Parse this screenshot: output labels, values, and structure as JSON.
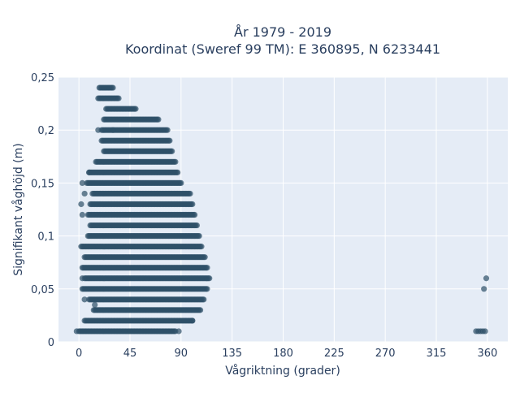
{
  "chart_data": {
    "type": "scatter",
    "title_line1": "År 1979 - 2019",
    "title_line2": "Koordinat (Sweref 99 TM): E 360895, N 6233441",
    "xlabel": "Vågriktning (grader)",
    "ylabel": "Signifikant våghöjd (m)",
    "xlim": [
      -18,
      378
    ],
    "ylim": [
      0,
      0.25
    ],
    "x_ticks": [
      0,
      45,
      90,
      135,
      180,
      225,
      270,
      315,
      360
    ],
    "x_tick_labels": [
      "0",
      "45",
      "90",
      "135",
      "180",
      "225",
      "270",
      "315",
      "360"
    ],
    "y_ticks": [
      0,
      0.05,
      0.1,
      0.15,
      0.2,
      0.25
    ],
    "y_tick_labels": [
      "0",
      "0,05",
      "0,1",
      "0,15",
      "0,2",
      "0,25"
    ],
    "grid": true,
    "marker_color": "#2e5068",
    "marker_opacity": 0.7,
    "rows": [
      {
        "y": 0.01,
        "x_min": 0,
        "x_max": 85
      },
      {
        "y": 0.02,
        "x_min": 5,
        "x_max": 100
      },
      {
        "y": 0.03,
        "x_min": 13,
        "x_max": 107
      },
      {
        "y": 0.04,
        "x_min": 9,
        "x_max": 110
      },
      {
        "y": 0.05,
        "x_min": 3,
        "x_max": 113
      },
      {
        "y": 0.06,
        "x_min": 5,
        "x_max": 115
      },
      {
        "y": 0.07,
        "x_min": 3,
        "x_max": 113
      },
      {
        "y": 0.08,
        "x_min": 5,
        "x_max": 111
      },
      {
        "y": 0.09,
        "x_min": 3,
        "x_max": 108
      },
      {
        "y": 0.1,
        "x_min": 8,
        "x_max": 106
      },
      {
        "y": 0.11,
        "x_min": 10,
        "x_max": 104
      },
      {
        "y": 0.12,
        "x_min": 8,
        "x_max": 102
      },
      {
        "y": 0.13,
        "x_min": 10,
        "x_max": 100
      },
      {
        "y": 0.14,
        "x_min": 12,
        "x_max": 98
      },
      {
        "y": 0.15,
        "x_min": 7,
        "x_max": 90
      },
      {
        "y": 0.16,
        "x_min": 9,
        "x_max": 87
      },
      {
        "y": 0.17,
        "x_min": 15,
        "x_max": 85
      },
      {
        "y": 0.18,
        "x_min": 22,
        "x_max": 82
      },
      {
        "y": 0.19,
        "x_min": 20,
        "x_max": 80
      },
      {
        "y": 0.2,
        "x_min": 20,
        "x_max": 78
      },
      {
        "y": 0.21,
        "x_min": 22,
        "x_max": 70
      },
      {
        "y": 0.22,
        "x_min": 24,
        "x_max": 50
      },
      {
        "y": 0.23,
        "x_min": 17,
        "x_max": 35
      },
      {
        "y": 0.24,
        "x_min": 18,
        "x_max": 30
      }
    ],
    "scattered_points": [
      {
        "x": -2,
        "y": 0.01
      },
      {
        "x": 88,
        "y": 0.01
      },
      {
        "x": 100,
        "y": 0.02
      },
      {
        "x": 14,
        "y": 0.035
      },
      {
        "x": 5,
        "y": 0.04
      },
      {
        "x": 3,
        "y": 0.06
      },
      {
        "x": 2,
        "y": 0.09
      },
      {
        "x": 3,
        "y": 0.12
      },
      {
        "x": 2,
        "y": 0.13
      },
      {
        "x": 5,
        "y": 0.14
      },
      {
        "x": 3,
        "y": 0.15
      },
      {
        "x": 9,
        "y": 0.16
      },
      {
        "x": 17,
        "y": 0.2
      },
      {
        "x": 30,
        "y": 0.2
      },
      {
        "x": 350,
        "y": 0.01
      },
      {
        "x": 352,
        "y": 0.01
      },
      {
        "x": 354,
        "y": 0.01
      },
      {
        "x": 356,
        "y": 0.01
      },
      {
        "x": 358,
        "y": 0.01
      },
      {
        "x": 357,
        "y": 0.05
      },
      {
        "x": 359,
        "y": 0.06
      }
    ]
  }
}
